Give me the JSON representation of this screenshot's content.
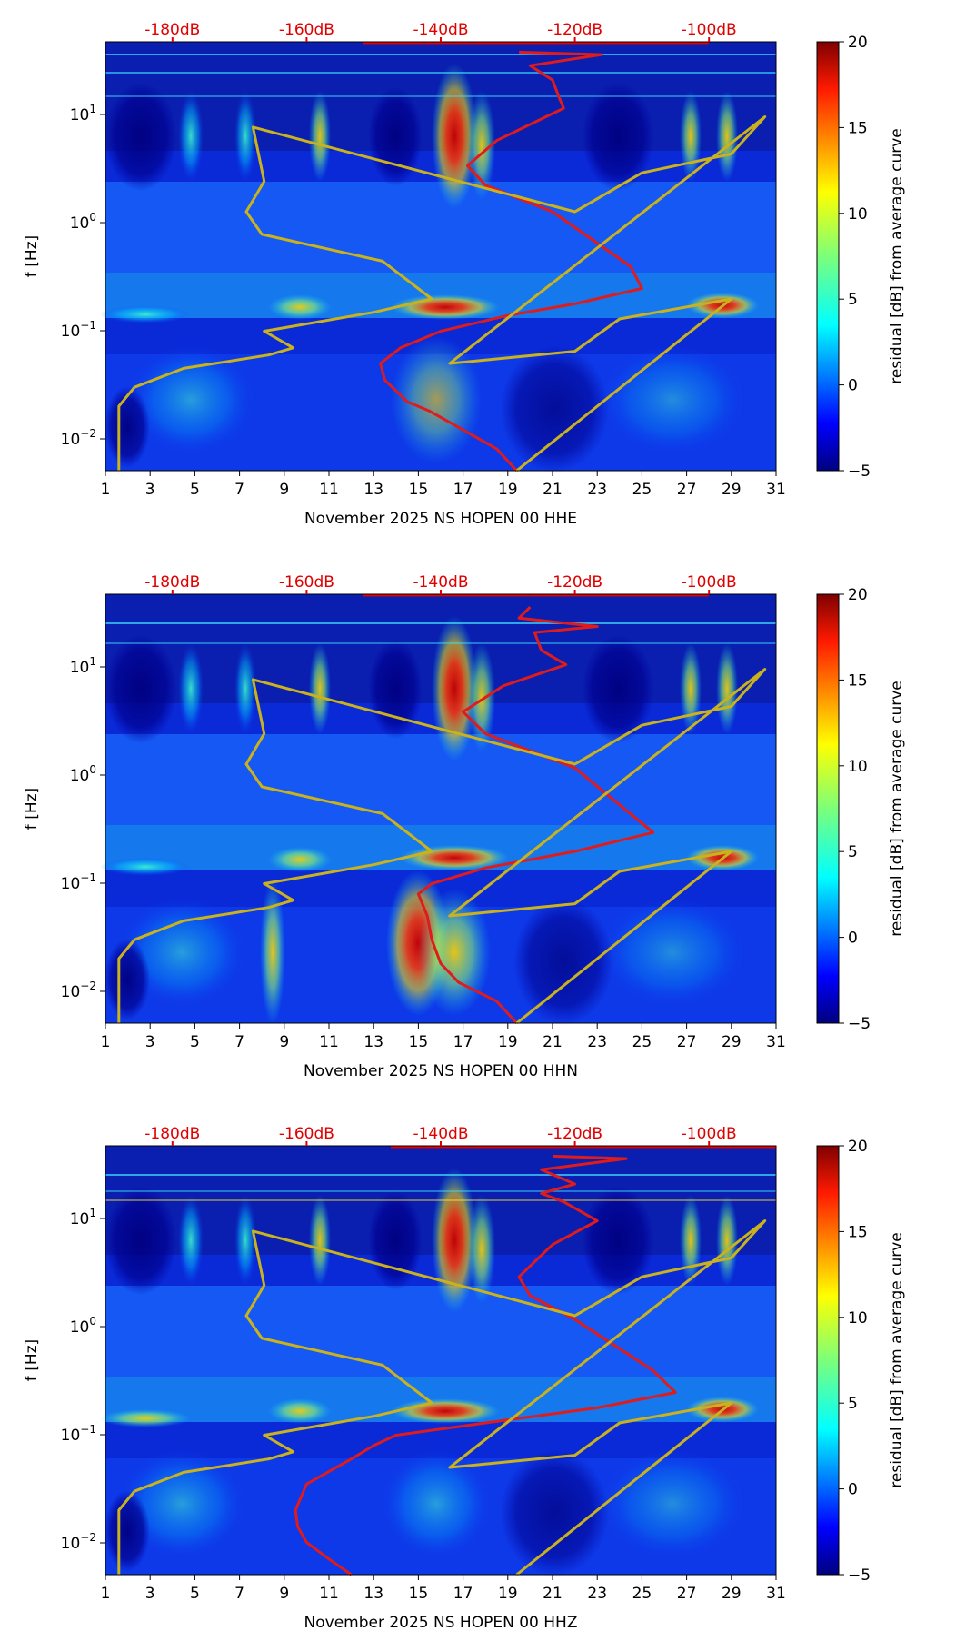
{
  "figure": {
    "x_ticks": [
      "1",
      "3",
      "5",
      "7",
      "9",
      "11",
      "13",
      "15",
      "17",
      "19",
      "21",
      "23",
      "25",
      "27",
      "29",
      "31"
    ],
    "y_label": "f [Hz]",
    "top_ticks": [
      "-180dB",
      "-160dB",
      "-140dB",
      "-120dB",
      "-100dB"
    ],
    "colorbar_ticks": [
      "20",
      "15",
      "10",
      "5",
      "0",
      "−5"
    ],
    "colorbar_label": "residual [dB] from average curve",
    "colors": {
      "red_curve": "#e01b1b",
      "yellow_curve": "#c9b21e",
      "top_tick_text": "#e00000"
    }
  },
  "chart_data": [
    {
      "type": "heatmap",
      "channel": "HHE",
      "xlabel": "November 2025 NS HOPEN 00 HHE",
      "ylabel": "f [Hz]",
      "x_range": [
        1,
        31
      ],
      "y_scale": "log",
      "y_range": [
        0.005,
        50
      ],
      "y_ticks": [
        "10^-2",
        "10^-1",
        "10^0",
        "10^1"
      ],
      "colorbar": {
        "label": "residual [dB] from average curve",
        "range": [
          -5,
          20
        ],
        "ticks": [
          20,
          15,
          10,
          5,
          0,
          -5
        ]
      },
      "top_axis": {
        "ticks": [
          "-180dB",
          "-160dB",
          "-140dB",
          "-120dB",
          "-100dB"
        ],
        "day_positions": [
          4,
          10,
          16,
          22,
          28
        ]
      },
      "series": [
        {
          "name": "median PSD (red)",
          "points": [
            [
              19.4,
              0.005
            ],
            [
              18.5,
              0.008
            ],
            [
              17,
              0.012
            ],
            [
              15.5,
              0.018
            ],
            [
              14.5,
              0.022
            ],
            [
              13.5,
              0.035
            ],
            [
              13.3,
              0.05
            ],
            [
              14.2,
              0.07
            ],
            [
              16,
              0.1
            ],
            [
              19,
              0.14
            ],
            [
              22,
              0.18
            ],
            [
              25,
              0.25
            ],
            [
              24.5,
              0.4
            ],
            [
              21,
              1.3
            ],
            [
              18,
              2.3
            ],
            [
              17.2,
              3.5
            ],
            [
              18.5,
              6
            ],
            [
              21.5,
              12
            ],
            [
              21.3,
              15
            ],
            [
              21,
              22
            ],
            [
              20,
              30
            ],
            [
              23.2,
              38
            ],
            [
              19.5,
              40
            ]
          ]
        },
        {
          "name": "median PSD (yellow)",
          "points": [
            [
              1.6,
              0.005
            ],
            [
              1.6,
              0.01
            ],
            [
              1.6,
              0.02
            ],
            [
              2.3,
              0.03
            ],
            [
              4.5,
              0.045
            ],
            [
              8.3,
              0.06
            ],
            [
              9.4,
              0.07
            ],
            [
              8.1,
              0.1
            ],
            [
              13,
              0.15
            ],
            [
              15.6,
              0.2
            ],
            [
              13.4,
              0.45
            ],
            [
              8,
              0.8
            ],
            [
              7.3,
              1.3
            ],
            [
              8.1,
              2.5
            ],
            [
              7.6,
              8
            ],
            [
              22,
              1.3
            ],
            [
              25,
              3
            ],
            [
              29,
              4.5
            ],
            [
              30.5,
              10
            ],
            [
              16.4,
              0.05
            ],
            [
              22,
              0.065
            ],
            [
              24,
              0.13
            ],
            [
              29,
              0.2
            ],
            [
              19.4,
              0.005
            ]
          ]
        }
      ]
    },
    {
      "type": "heatmap",
      "channel": "HHN",
      "xlabel": "November 2025 NS HOPEN 00 HHN",
      "ylabel": "f [Hz]",
      "x_range": [
        1,
        31
      ],
      "y_scale": "log",
      "y_range": [
        0.005,
        50
      ],
      "y_ticks": [
        "10^-2",
        "10^-1",
        "10^0",
        "10^1"
      ],
      "colorbar": {
        "label": "residual [dB] from average curve",
        "range": [
          -5,
          20
        ],
        "ticks": [
          20,
          15,
          10,
          5,
          0,
          -5
        ]
      },
      "top_axis": {
        "ticks": [
          "-180dB",
          "-160dB",
          "-140dB",
          "-120dB",
          "-100dB"
        ],
        "day_positions": [
          4,
          10,
          16,
          22,
          28
        ]
      },
      "series": [
        {
          "name": "median PSD (red)",
          "points": [
            [
              19.4,
              0.005
            ],
            [
              18.5,
              0.008
            ],
            [
              16.8,
              0.012
            ],
            [
              16,
              0.018
            ],
            [
              15.6,
              0.03
            ],
            [
              15.4,
              0.05
            ],
            [
              15,
              0.08
            ],
            [
              15.6,
              0.1
            ],
            [
              18,
              0.14
            ],
            [
              22,
              0.2
            ],
            [
              25.5,
              0.3
            ],
            [
              22,
              1.2
            ],
            [
              18,
              2.5
            ],
            [
              17,
              4
            ],
            [
              18.8,
              7
            ],
            [
              21.6,
              11
            ],
            [
              20.5,
              15
            ],
            [
              20.2,
              22
            ],
            [
              23,
              25
            ],
            [
              19.5,
              30
            ],
            [
              20,
              38
            ]
          ]
        },
        {
          "name": "median PSD (yellow)",
          "points": [
            [
              1.6,
              0.005
            ],
            [
              1.6,
              0.01
            ],
            [
              1.6,
              0.02
            ],
            [
              2.3,
              0.03
            ],
            [
              4.5,
              0.045
            ],
            [
              8.3,
              0.06
            ],
            [
              9.4,
              0.07
            ],
            [
              8.1,
              0.1
            ],
            [
              13,
              0.15
            ],
            [
              15.6,
              0.2
            ],
            [
              13.4,
              0.45
            ],
            [
              8,
              0.8
            ],
            [
              7.3,
              1.3
            ],
            [
              8.1,
              2.5
            ],
            [
              7.6,
              8
            ],
            [
              22,
              1.3
            ],
            [
              25,
              3
            ],
            [
              29,
              4.5
            ],
            [
              30.5,
              10
            ],
            [
              16.4,
              0.05
            ],
            [
              22,
              0.065
            ],
            [
              24,
              0.13
            ],
            [
              29,
              0.2
            ],
            [
              19.4,
              0.005
            ]
          ]
        }
      ]
    },
    {
      "type": "heatmap",
      "channel": "HHZ",
      "xlabel": "November 2025 NS HOPEN 00 HHZ",
      "ylabel": "f [Hz]",
      "x_range": [
        1,
        31
      ],
      "y_scale": "log",
      "y_range": [
        0.005,
        50
      ],
      "y_ticks": [
        "10^-2",
        "10^-1",
        "10^0",
        "10^1"
      ],
      "colorbar": {
        "label": "residual [dB] from average curve",
        "range": [
          -5,
          20
        ],
        "ticks": [
          20,
          15,
          10,
          5,
          0,
          -5
        ]
      },
      "top_axis": {
        "ticks": [
          "-180dB",
          "-160dB",
          "-140dB",
          "-120dB",
          "-100dB"
        ],
        "day_positions": [
          4,
          10,
          16,
          22,
          28
        ]
      },
      "series": [
        {
          "name": "median PSD (red)",
          "points": [
            [
              12,
              0.005
            ],
            [
              11,
              0.007
            ],
            [
              10,
              0.01
            ],
            [
              9.6,
              0.014
            ],
            [
              9.5,
              0.02
            ],
            [
              10,
              0.035
            ],
            [
              12,
              0.06
            ],
            [
              13,
              0.08
            ],
            [
              14,
              0.1
            ],
            [
              18,
              0.13
            ],
            [
              23,
              0.18
            ],
            [
              26.5,
              0.25
            ],
            [
              25.5,
              0.4
            ],
            [
              22,
              1.2
            ],
            [
              20,
              2
            ],
            [
              19.5,
              3
            ],
            [
              21,
              6
            ],
            [
              23,
              10
            ],
            [
              21.5,
              15
            ],
            [
              20.5,
              18
            ],
            [
              22,
              22
            ],
            [
              20.5,
              30
            ],
            [
              23,
              35
            ],
            [
              24.3,
              38
            ],
            [
              21,
              40
            ]
          ]
        },
        {
          "name": "median PSD (yellow)",
          "points": [
            [
              1.6,
              0.005
            ],
            [
              1.6,
              0.01
            ],
            [
              1.6,
              0.02
            ],
            [
              2.3,
              0.03
            ],
            [
              4.5,
              0.045
            ],
            [
              8.3,
              0.06
            ],
            [
              9.4,
              0.07
            ],
            [
              8.1,
              0.1
            ],
            [
              13,
              0.15
            ],
            [
              15.6,
              0.2
            ],
            [
              13.4,
              0.45
            ],
            [
              8,
              0.8
            ],
            [
              7.3,
              1.3
            ],
            [
              8.1,
              2.5
            ],
            [
              7.6,
              8
            ],
            [
              22,
              1.3
            ],
            [
              25,
              3
            ],
            [
              29,
              4.5
            ],
            [
              30.5,
              10
            ],
            [
              16.4,
              0.05
            ],
            [
              22,
              0.065
            ],
            [
              24,
              0.13
            ],
            [
              29,
              0.2
            ],
            [
              19.4,
              0.005
            ]
          ]
        }
      ]
    }
  ]
}
